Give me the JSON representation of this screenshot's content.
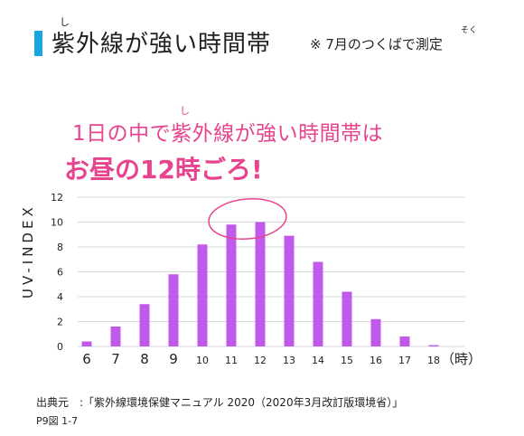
{
  "header": {
    "title": "紫外線が強い時間帯",
    "title_ruby": "し",
    "note": "※ 7月のつくばで測定",
    "note_ruby": "そく"
  },
  "headline": {
    "line1": "1日の中で紫外線が強い時間帯は",
    "line1_ruby": "し",
    "line2": "お昼の12時ごろ!"
  },
  "colors": {
    "accent_bar": "#19a5e1",
    "bars": "#c159ea",
    "highlight": "#e7448f"
  },
  "chart_data": {
    "type": "bar",
    "ylabel": "UV-INDEX",
    "xunit": "（時）",
    "categories": [
      "6",
      "7",
      "8",
      "9",
      "10",
      "11",
      "12",
      "13",
      "14",
      "15",
      "16",
      "17",
      "18"
    ],
    "values": [
      0.4,
      1.6,
      3.4,
      5.8,
      8.2,
      9.8,
      10.0,
      8.9,
      6.8,
      4.4,
      2.2,
      0.8,
      0.1
    ],
    "yticks": [
      0,
      2,
      4,
      6,
      8,
      10,
      12
    ],
    "ylim": [
      0,
      12
    ],
    "grid": true,
    "annotation": "circle around 11–12"
  },
  "source": {
    "line1": "出典元　:「紫外線環境保健マニュアル 2020（2020年3月改訂版環境省）」",
    "line2": "P9図 1-7"
  }
}
